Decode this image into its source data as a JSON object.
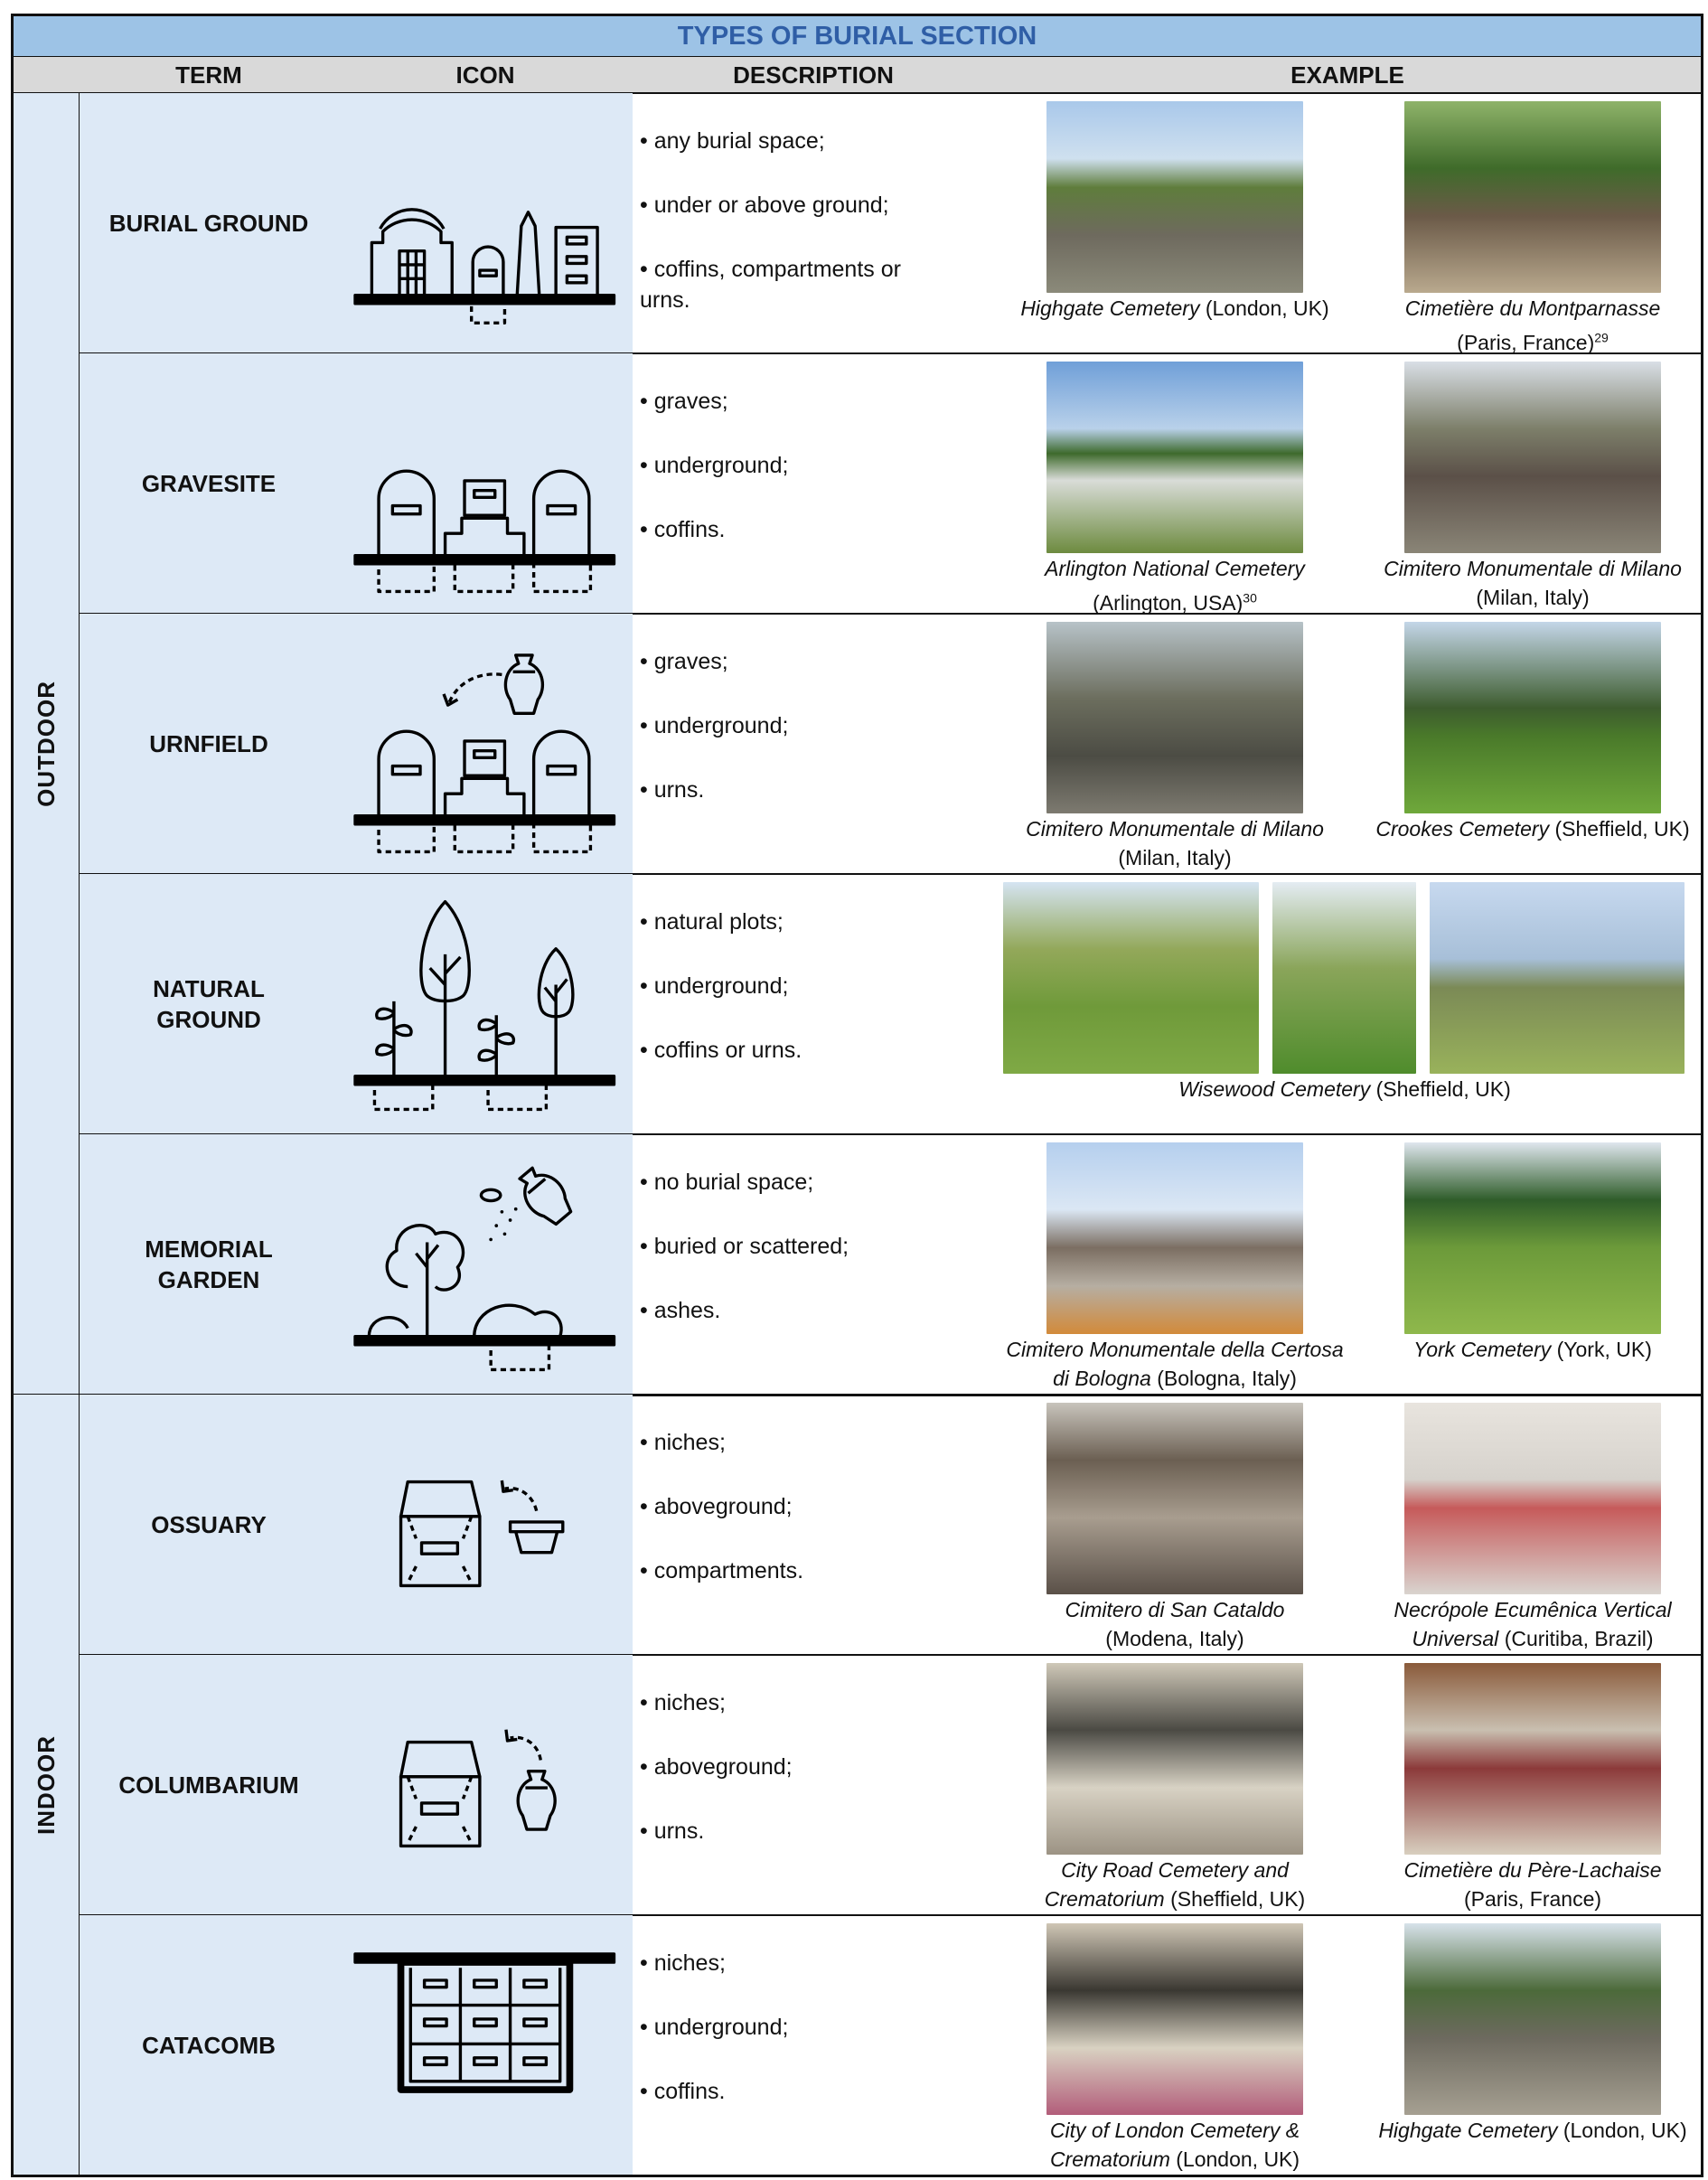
{
  "header": {
    "title": "TYPES OF BURIAL SECTION",
    "columns": [
      "TERM",
      "ICON",
      "DESCRIPTION",
      "EXAMPLE"
    ]
  },
  "groups": [
    {
      "label": "OUTDOOR",
      "rows": [
        {
          "term": "BURIAL GROUND",
          "description": [
            "• any burial space;",
            "• under or above ground;",
            "• coffins, compartments or urns."
          ],
          "examples": [
            {
              "name": "Highgate Cemetery",
              "location": "(London, UK)"
            },
            {
              "name": "Cimetière du Montparnasse",
              "location": "(Paris, France)",
              "note": "29"
            }
          ]
        },
        {
          "term": "GRAVESITE",
          "description": [
            "• graves;",
            "• underground;",
            "• coffins."
          ],
          "examples": [
            {
              "name": "Arlington National Cemetery",
              "location": "(Arlington, USA)",
              "note": "30"
            },
            {
              "name": "Cimitero Monumentale di Milano",
              "location": "(Milan, Italy)"
            }
          ]
        },
        {
          "term": "URNFIELD",
          "description": [
            "• graves;",
            "• underground;",
            "• urns."
          ],
          "examples": [
            {
              "name": "Cimitero Monumentale di Milano",
              "location": "(Milan, Italy)"
            },
            {
              "name": "Crookes Cemetery",
              "location": "(Sheffield, UK)"
            }
          ]
        },
        {
          "term": "NATURAL GROUND",
          "description": [
            "• natural plots;",
            "• underground;",
            "• coffins or urns."
          ],
          "examples": [
            {
              "name": "Wisewood Cemetery",
              "location": "(Sheffield, UK)"
            }
          ]
        },
        {
          "term": "MEMORIAL GARDEN",
          "description": [
            "• no burial space;",
            "• buried or scattered;",
            "• ashes."
          ],
          "examples": [
            {
              "name": "Cimitero Monumentale della Certosa di Bologna",
              "location": "(Bologna, Italy)"
            },
            {
              "name": "York Cemetery",
              "location": "(York, UK)"
            }
          ]
        }
      ]
    },
    {
      "label": "INDOOR",
      "rows": [
        {
          "term": "OSSUARY",
          "description": [
            "• niches;",
            "• aboveground;",
            "• compartments."
          ],
          "examples": [
            {
              "name": "Cimitero di San Cataldo",
              "location": "(Modena, Italy)"
            },
            {
              "name": "Necrópole Ecumênica Vertical Universal",
              "location": "(Curitiba, Brazil)"
            }
          ]
        },
        {
          "term": "COLUMBARIUM",
          "description": [
            "• niches;",
            "• aboveground;",
            "• urns."
          ],
          "examples": [
            {
              "name": "City Road Cemetery and Crematorium",
              "location": "(Sheffield, UK)"
            },
            {
              "name": "Cimetière du Père-Lachaise",
              "location": "(Paris, France)"
            }
          ]
        },
        {
          "term": "CATACOMB",
          "description": [
            "• niches;",
            "• underground;",
            "• coffins."
          ],
          "examples": [
            {
              "name": "City of London Cemetery & Crematorium",
              "location": "(London, UK)"
            },
            {
              "name": "Highgate Cemetery",
              "location": "(London, UK)"
            }
          ]
        }
      ]
    }
  ]
}
